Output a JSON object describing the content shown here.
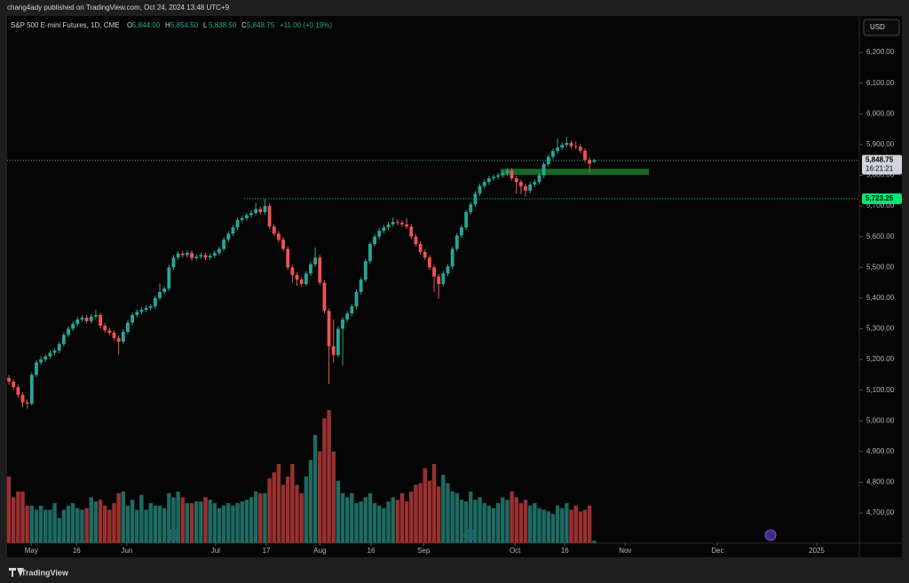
{
  "chart_data": {
    "type": "candlestick",
    "publisher": "chang4ady published on TradingView.com, Oct 24, 2024 13:48 UTC+9",
    "title": "S&P 500 E-mini Futures, 1D, CME",
    "legend": [
      {
        "label": "O",
        "value": "5,844.00"
      },
      {
        "label": "H",
        "value": "5,854.50"
      },
      {
        "label": "L",
        "value": "5,838.50"
      },
      {
        "label": "C",
        "value": "5,848.75"
      }
    ],
    "change": "+11.00 (+0.19%)",
    "currency": "USD",
    "brand": "TradingView",
    "up_color": "#26a69a",
    "down_color": "#ef5350",
    "up_volume_color": "#1d6b62",
    "down_volume_color": "#9b3030",
    "ylim": [
      4602,
      6313
    ],
    "yticks": [
      {
        "value": 4700,
        "label": "4,700.00"
      },
      {
        "value": 4800,
        "label": "4,800.00"
      },
      {
        "value": 4900,
        "label": "4,900.00"
      },
      {
        "value": 5000,
        "label": "5,000.00"
      },
      {
        "value": 5100,
        "label": "5,100.00"
      },
      {
        "value": 5200,
        "label": "5,200.00"
      },
      {
        "value": 5300,
        "label": "5,300.00"
      },
      {
        "value": 5400,
        "label": "5,400.00"
      },
      {
        "value": 5500,
        "label": "5,500.00"
      },
      {
        "value": 5600,
        "label": "5,600.00"
      },
      {
        "value": 5700,
        "label": "5,700.00"
      },
      {
        "value": 5800,
        "label": "5,800.00"
      },
      {
        "value": 5900,
        "label": "5,900.00"
      },
      {
        "value": 6000,
        "label": "6,000.00"
      },
      {
        "value": 6100,
        "label": "6,100.00"
      },
      {
        "value": 6200,
        "label": "6,200.00"
      }
    ],
    "xlim": [
      -0.4,
      186
    ],
    "xticks": [
      {
        "value": 4.9,
        "label": "May"
      },
      {
        "value": 14.8,
        "label": "16"
      },
      {
        "value": 25.8,
        "label": "Jun"
      },
      {
        "value": 45.2,
        "label": "Jul"
      },
      {
        "value": 56.3,
        "label": "17"
      },
      {
        "value": 68,
        "label": "Aug"
      },
      {
        "value": 79.2,
        "label": "16"
      },
      {
        "value": 90.7,
        "label": "Sep"
      },
      {
        "value": 110.7,
        "label": "Oct"
      },
      {
        "value": 121.6,
        "label": "16"
      },
      {
        "value": 134.8,
        "label": "Nov"
      },
      {
        "value": 155,
        "label": "Dec"
      },
      {
        "value": 176.7,
        "label": "2025"
      }
    ],
    "price_lines": [
      {
        "value": 5848.75,
        "label": "5,848.75",
        "countdown": "16:21:21",
        "color": "#26a69a",
        "start": -0.4
      },
      {
        "value": 5723.25,
        "label": "5,723.25",
        "color": "#00e676",
        "start": 51.5
      }
    ],
    "zone": {
      "from": 5801,
      "to": 5821,
      "start": 107.5,
      "end": 140,
      "color": "#1b7a2a"
    },
    "candles": [
      [
        5140,
        5150,
        5118,
        5128
      ],
      [
        5128,
        5135,
        5100,
        5110
      ],
      [
        5110,
        5118,
        5075,
        5085
      ],
      [
        5085,
        5092,
        5045,
        5060
      ],
      [
        5060,
        5070,
        5040,
        5056
      ],
      [
        5056,
        5158,
        5050,
        5150
      ],
      [
        5150,
        5198,
        5142,
        5190
      ],
      [
        5190,
        5210,
        5182,
        5200
      ],
      [
        5200,
        5218,
        5192,
        5210
      ],
      [
        5210,
        5230,
        5202,
        5222
      ],
      [
        5222,
        5236,
        5214,
        5229
      ],
      [
        5229,
        5258,
        5221,
        5250
      ],
      [
        5250,
        5288,
        5242,
        5280
      ],
      [
        5280,
        5308,
        5272,
        5300
      ],
      [
        5300,
        5324,
        5292,
        5316
      ],
      [
        5316,
        5338,
        5308,
        5330
      ],
      [
        5330,
        5344,
        5322,
        5336
      ],
      [
        5336,
        5344,
        5317,
        5325
      ],
      [
        5325,
        5348,
        5317,
        5340
      ],
      [
        5340,
        5362,
        5332,
        5345
      ],
      [
        5345,
        5352,
        5302,
        5310
      ],
      [
        5310,
        5318,
        5287,
        5295
      ],
      [
        5295,
        5303,
        5279,
        5287
      ],
      [
        5287,
        5295,
        5262,
        5270
      ],
      [
        5270,
        5278,
        5215,
        5258
      ],
      [
        5258,
        5298,
        5250,
        5290
      ],
      [
        5290,
        5328,
        5282,
        5320
      ],
      [
        5320,
        5353,
        5312,
        5345
      ],
      [
        5345,
        5363,
        5337,
        5355
      ],
      [
        5355,
        5370,
        5347,
        5362
      ],
      [
        5362,
        5376,
        5354,
        5368
      ],
      [
        5368,
        5381,
        5360,
        5373
      ],
      [
        5373,
        5408,
        5365,
        5400
      ],
      [
        5400,
        5448,
        5392,
        5420
      ],
      [
        5420,
        5439,
        5412,
        5431
      ],
      [
        5431,
        5508,
        5423,
        5500
      ],
      [
        5500,
        5540,
        5492,
        5532
      ],
      [
        5532,
        5553,
        5524,
        5545
      ],
      [
        5545,
        5553,
        5532,
        5540
      ],
      [
        5540,
        5555,
        5532,
        5547
      ],
      [
        5547,
        5555,
        5522,
        5530
      ],
      [
        5530,
        5543,
        5522,
        5535
      ],
      [
        5535,
        5548,
        5527,
        5540
      ],
      [
        5540,
        5548,
        5524,
        5532
      ],
      [
        5532,
        5546,
        5524,
        5538
      ],
      [
        5538,
        5555,
        5530,
        5547
      ],
      [
        5547,
        5568,
        5539,
        5560
      ],
      [
        5560,
        5598,
        5552,
        5590
      ],
      [
        5590,
        5618,
        5582,
        5610
      ],
      [
        5610,
        5638,
        5602,
        5630
      ],
      [
        5630,
        5662,
        5622,
        5654
      ],
      [
        5654,
        5668,
        5646,
        5660
      ],
      [
        5660,
        5678,
        5652,
        5670
      ],
      [
        5670,
        5685,
        5662,
        5677
      ],
      [
        5677,
        5710,
        5669,
        5690
      ],
      [
        5690,
        5698,
        5672,
        5680
      ],
      [
        5680,
        5722,
        5672,
        5700
      ],
      [
        5700,
        5708,
        5625,
        5633
      ],
      [
        5633,
        5641,
        5602,
        5610
      ],
      [
        5610,
        5618,
        5582,
        5590
      ],
      [
        5590,
        5598,
        5552,
        5560
      ],
      [
        5560,
        5568,
        5492,
        5500
      ],
      [
        5500,
        5508,
        5450,
        5475
      ],
      [
        5475,
        5483,
        5440,
        5460
      ],
      [
        5460,
        5468,
        5438,
        5446
      ],
      [
        5446,
        5488,
        5438,
        5480
      ],
      [
        5480,
        5518,
        5472,
        5510
      ],
      [
        5510,
        5565,
        5502,
        5532
      ],
      [
        5532,
        5540,
        5442,
        5450
      ],
      [
        5450,
        5458,
        5350,
        5358
      ],
      [
        5358,
        5366,
        5120,
        5243
      ],
      [
        5243,
        5330,
        5190,
        5214
      ],
      [
        5214,
        5308,
        5206,
        5300
      ],
      [
        5300,
        5338,
        5180,
        5330
      ],
      [
        5330,
        5358,
        5322,
        5350
      ],
      [
        5350,
        5381,
        5342,
        5373
      ],
      [
        5373,
        5428,
        5365,
        5420
      ],
      [
        5420,
        5468,
        5412,
        5460
      ],
      [
        5460,
        5528,
        5452,
        5520
      ],
      [
        5520,
        5584,
        5512,
        5576
      ],
      [
        5576,
        5608,
        5568,
        5600
      ],
      [
        5600,
        5627,
        5592,
        5619
      ],
      [
        5619,
        5638,
        5611,
        5630
      ],
      [
        5630,
        5648,
        5622,
        5640
      ],
      [
        5640,
        5662,
        5632,
        5648
      ],
      [
        5648,
        5656,
        5637,
        5645
      ],
      [
        5645,
        5653,
        5632,
        5640
      ],
      [
        5640,
        5660,
        5625,
        5633
      ],
      [
        5633,
        5641,
        5592,
        5600
      ],
      [
        5600,
        5608,
        5568,
        5576
      ],
      [
        5576,
        5584,
        5542,
        5550
      ],
      [
        5550,
        5558,
        5524,
        5532
      ],
      [
        5532,
        5540,
        5492,
        5500
      ],
      [
        5500,
        5508,
        5420,
        5470
      ],
      [
        5470,
        5478,
        5398,
        5446
      ],
      [
        5446,
        5488,
        5438,
        5480
      ],
      [
        5480,
        5511,
        5472,
        5503
      ],
      [
        5503,
        5568,
        5495,
        5560
      ],
      [
        5560,
        5612,
        5552,
        5604
      ],
      [
        5604,
        5638,
        5596,
        5630
      ],
      [
        5630,
        5688,
        5622,
        5680
      ],
      [
        5680,
        5713,
        5672,
        5705
      ],
      [
        5705,
        5748,
        5697,
        5740
      ],
      [
        5740,
        5773,
        5732,
        5765
      ],
      [
        5765,
        5786,
        5757,
        5778
      ],
      [
        5778,
        5798,
        5770,
        5790
      ],
      [
        5790,
        5803,
        5782,
        5795
      ],
      [
        5795,
        5808,
        5787,
        5800
      ],
      [
        5800,
        5815,
        5792,
        5807
      ],
      [
        5807,
        5823,
        5799,
        5815
      ],
      [
        5815,
        5823,
        5782,
        5790
      ],
      [
        5790,
        5798,
        5740,
        5778
      ],
      [
        5778,
        5786,
        5738,
        5764
      ],
      [
        5764,
        5772,
        5730,
        5750
      ],
      [
        5750,
        5778,
        5742,
        5770
      ],
      [
        5770,
        5786,
        5762,
        5778
      ],
      [
        5778,
        5808,
        5770,
        5800
      ],
      [
        5800,
        5844,
        5792,
        5836
      ],
      [
        5836,
        5868,
        5828,
        5860
      ],
      [
        5860,
        5887,
        5852,
        5879
      ],
      [
        5879,
        5920,
        5871,
        5890
      ],
      [
        5890,
        5907,
        5882,
        5899
      ],
      [
        5899,
        5925,
        5891,
        5905
      ],
      [
        5905,
        5913,
        5887,
        5895
      ],
      [
        5895,
        5910,
        5885,
        5893
      ],
      [
        5893,
        5901,
        5872,
        5880
      ],
      [
        5880,
        5888,
        5842,
        5850
      ],
      [
        5850,
        5858,
        5810,
        5837.75
      ],
      [
        5844,
        5854.5,
        5838.5,
        5848.75
      ]
    ],
    "volume": [
      80,
      55,
      62,
      62,
      45,
      45,
      40,
      45,
      40,
      40,
      48,
      30,
      40,
      45,
      48,
      42,
      40,
      42,
      55,
      50,
      52,
      45,
      40,
      48,
      60,
      62,
      45,
      52,
      40,
      58,
      40,
      48,
      45,
      45,
      42,
      60,
      55,
      62,
      55,
      48,
      48,
      50,
      50,
      55,
      52,
      48,
      42,
      45,
      48,
      45,
      48,
      50,
      52,
      55,
      62,
      60,
      60,
      78,
      85,
      95,
      70,
      80,
      95,
      70,
      60,
      80,
      100,
      130,
      110,
      150,
      160,
      110,
      75,
      60,
      55,
      60,
      48,
      50,
      55,
      60,
      48,
      45,
      42,
      50,
      55,
      52,
      60,
      50,
      62,
      70,
      72,
      90,
      75,
      95,
      68,
      82,
      72,
      62,
      60,
      52,
      50,
      62,
      52,
      55,
      48,
      45,
      42,
      48,
      55,
      52,
      62,
      55,
      48,
      52,
      45,
      48,
      42,
      40,
      38,
      35,
      45,
      42,
      48,
      40,
      45,
      38,
      40,
      45,
      3
    ]
  }
}
